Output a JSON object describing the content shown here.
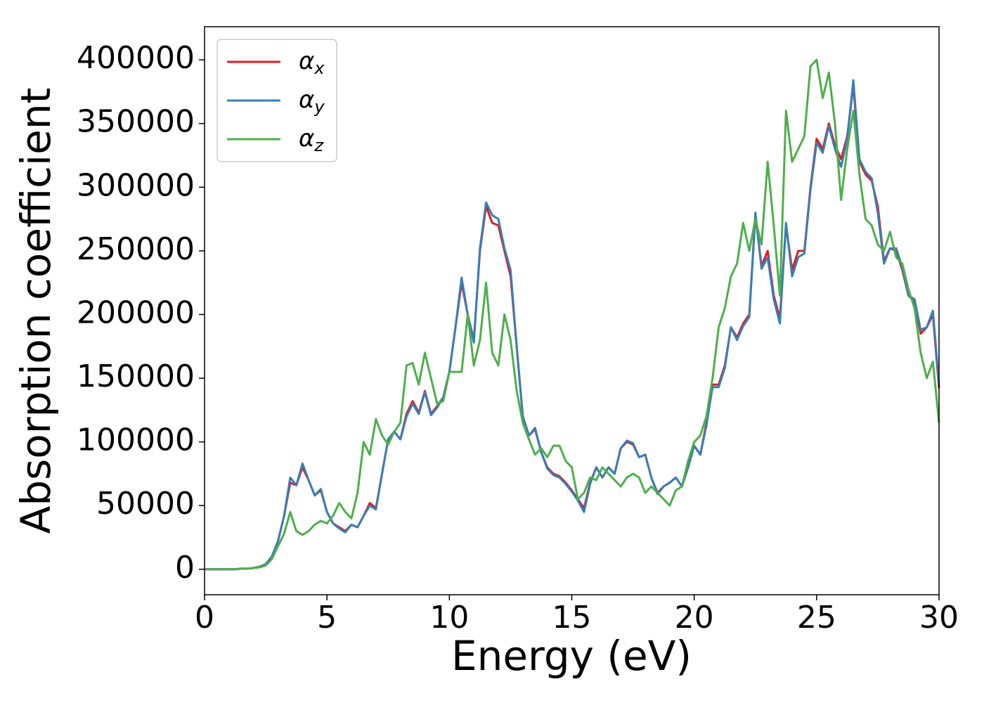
{
  "chart_data": {
    "type": "line",
    "xlabel": "Energy (eV)",
    "ylabel": "Absorption coefficient",
    "xlim": [
      0,
      30
    ],
    "xticks": [
      0,
      5,
      10,
      15,
      20,
      25,
      30
    ],
    "ylim": [
      -20000,
      426000
    ],
    "yticks": [
      0,
      50000,
      100000,
      150000,
      200000,
      250000,
      300000,
      350000,
      400000
    ],
    "legend": "upper left",
    "x": [
      0,
      0.25,
      0.5,
      0.75,
      1,
      1.25,
      1.5,
      1.75,
      2,
      2.25,
      2.5,
      2.75,
      3,
      3.25,
      3.5,
      3.75,
      4,
      4.25,
      4.5,
      4.75,
      5,
      5.25,
      5.5,
      5.75,
      6,
      6.25,
      6.5,
      6.75,
      7,
      7.25,
      7.5,
      7.75,
      8,
      8.25,
      8.5,
      8.75,
      9,
      9.25,
      9.5,
      9.75,
      10,
      10.25,
      10.5,
      10.75,
      11,
      11.25,
      11.5,
      11.75,
      12,
      12.25,
      12.5,
      12.75,
      13,
      13.25,
      13.5,
      13.75,
      14,
      14.25,
      14.5,
      14.75,
      15,
      15.25,
      15.5,
      15.75,
      16,
      16.25,
      16.5,
      16.75,
      17,
      17.25,
      17.5,
      17.75,
      18,
      18.25,
      18.5,
      18.75,
      19,
      19.25,
      19.5,
      19.75,
      20,
      20.25,
      20.5,
      20.75,
      21,
      21.25,
      21.5,
      21.75,
      22,
      22.25,
      22.5,
      22.75,
      23,
      23.25,
      23.5,
      23.75,
      24,
      24.25,
      24.5,
      24.75,
      25,
      25.25,
      25.5,
      25.75,
      26,
      26.25,
      26.5,
      26.75,
      27,
      27.25,
      27.5,
      27.75,
      28,
      28.25,
      28.5,
      28.75,
      29,
      29.25,
      29.5,
      29.75,
      30
    ],
    "series": [
      {
        "name": "αx",
        "color": "#e41a1c",
        "values": [
          0,
          0,
          0,
          0,
          0,
          0,
          500,
          500,
          1000,
          2000,
          4000,
          10000,
          22000,
          42000,
          68000,
          66000,
          80000,
          70000,
          58000,
          62000,
          45000,
          36000,
          33000,
          30000,
          35000,
          33000,
          42000,
          52000,
          48000,
          75000,
          102000,
          108000,
          102000,
          122000,
          132000,
          123000,
          140000,
          122000,
          128000,
          135000,
          155000,
          190000,
          225000,
          200000,
          180000,
          250000,
          285000,
          272000,
          270000,
          250000,
          230000,
          175000,
          120000,
          105000,
          110000,
          92000,
          80000,
          75000,
          73000,
          68000,
          62000,
          55000,
          48000,
          68000,
          80000,
          72000,
          80000,
          75000,
          95000,
          100000,
          98000,
          88000,
          90000,
          72000,
          60000,
          65000,
          68000,
          72000,
          65000,
          80000,
          97000,
          90000,
          115000,
          145000,
          145000,
          160000,
          190000,
          182000,
          193000,
          200000,
          278000,
          238000,
          250000,
          215000,
          197000,
          270000,
          235000,
          250000,
          250000,
          300000,
          338000,
          330000,
          350000,
          333000,
          322000,
          340000,
          380000,
          320000,
          310000,
          305000,
          285000,
          242000,
          252000,
          250000,
          235000,
          215000,
          210000,
          185000,
          190000,
          200000,
          142000
        ]
      },
      {
        "name": "αy",
        "color": "#377eb8",
        "values": [
          0,
          0,
          0,
          0,
          0,
          0,
          500,
          500,
          1000,
          2000,
          4000,
          10000,
          22000,
          42000,
          72000,
          66000,
          83000,
          70000,
          58000,
          63000,
          45000,
          36000,
          32000,
          29000,
          35000,
          33000,
          42000,
          50000,
          47000,
          75000,
          102000,
          108000,
          102000,
          120000,
          130000,
          122000,
          139000,
          121000,
          127000,
          135000,
          155000,
          190000,
          229000,
          200000,
          178000,
          252000,
          288000,
          278000,
          275000,
          252000,
          235000,
          175000,
          120000,
          105000,
          111000,
          92000,
          79000,
          74000,
          72000,
          67000,
          61000,
          54000,
          45000,
          67000,
          80000,
          72000,
          80000,
          75000,
          95000,
          101000,
          99000,
          88000,
          90000,
          72000,
          59000,
          65000,
          68000,
          72000,
          65000,
          80000,
          97000,
          90000,
          113000,
          143000,
          143000,
          158000,
          190000,
          180000,
          191000,
          198000,
          280000,
          236000,
          245000,
          212000,
          193000,
          272000,
          230000,
          245000,
          248000,
          298000,
          335000,
          327000,
          348000,
          330000,
          316000,
          338000,
          384000,
          322000,
          312000,
          307000,
          280000,
          240000,
          252000,
          252000,
          237000,
          215000,
          212000,
          188000,
          190000,
          203000,
          145000
        ]
      },
      {
        "name": "αz",
        "color": "#4daf4a",
        "values": [
          0,
          0,
          0,
          0,
          0,
          0,
          500,
          500,
          1000,
          1500,
          3000,
          8000,
          18000,
          28000,
          45000,
          30000,
          27000,
          30000,
          35000,
          38000,
          36000,
          42000,
          52000,
          45000,
          40000,
          60000,
          100000,
          90000,
          118000,
          105000,
          98000,
          108000,
          115000,
          160000,
          162000,
          145000,
          170000,
          150000,
          130000,
          132000,
          155000,
          155000,
          155000,
          200000,
          160000,
          180000,
          225000,
          170000,
          160000,
          200000,
          180000,
          140000,
          115000,
          102000,
          90000,
          95000,
          88000,
          97000,
          97000,
          85000,
          80000,
          55000,
          60000,
          72000,
          70000,
          80000,
          75000,
          70000,
          65000,
          72000,
          75000,
          72000,
          60000,
          65000,
          60000,
          55000,
          50000,
          62000,
          65000,
          85000,
          100000,
          105000,
          120000,
          150000,
          190000,
          205000,
          230000,
          240000,
          272000,
          250000,
          275000,
          255000,
          320000,
          270000,
          215000,
          360000,
          320000,
          330000,
          340000,
          395000,
          400000,
          370000,
          390000,
          350000,
          290000,
          330000,
          360000,
          310000,
          275000,
          270000,
          255000,
          250000,
          265000,
          245000,
          240000,
          220000,
          205000,
          170000,
          150000,
          163000,
          115000
        ]
      }
    ]
  }
}
